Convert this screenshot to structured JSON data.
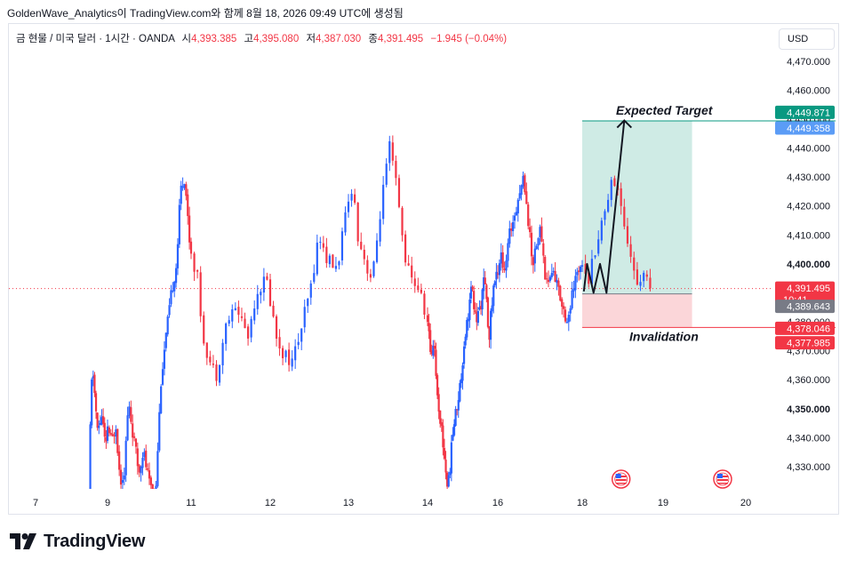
{
  "caption": "GoldenWave_Analytics이 TradingView.com와 함께 8월 18, 2026 09:49 UTC에 생성됨",
  "legend": {
    "symbol": "금 현물 / 미국 달러 · 1시간 · OANDA",
    "open_label": "시",
    "open": "4,393.385",
    "high_label": "고",
    "high": "4,395.080",
    "low_label": "저",
    "low": "4,387.030",
    "close_label": "종",
    "close": "4,391.495",
    "change": "−1.945 (−0.04%)"
  },
  "currency": "USD",
  "logo_text": "TradingView",
  "colors": {
    "up": "#2962ff",
    "down": "#f23645",
    "target_zone": "#cfebe5",
    "stop_zone": "#fbd6d9"
  },
  "chart_data": {
    "type": "candlestick",
    "y_axis": {
      "min": 4322,
      "max": 4478,
      "ticks": [
        4330,
        4340,
        4350,
        4360,
        4370,
        4380,
        4390,
        4400,
        4410,
        4420,
        4430,
        4440,
        4450,
        4460,
        4470
      ],
      "bold_ticks": [
        4350,
        4400
      ]
    },
    "x_axis": {
      "labels": [
        {
          "label": "7",
          "at": 7.0
        },
        {
          "label": "9",
          "at": 9.0
        },
        {
          "label": "11",
          "at": 11.0
        },
        {
          "label": "12",
          "at": 12.0
        },
        {
          "label": "13",
          "at": 13.0
        },
        {
          "label": "14",
          "at": 14.0
        },
        {
          "label": "16",
          "at": 16.0
        },
        {
          "label": "18",
          "at": 18.0
        },
        {
          "label": "19",
          "at": 19.0
        },
        {
          "label": "20",
          "at": 20.0
        }
      ]
    },
    "price_path": [
      [
        8.48,
        4322
      ],
      [
        8.55,
        4358
      ],
      [
        8.6,
        4362
      ],
      [
        8.72,
        4342
      ],
      [
        8.85,
        4348
      ],
      [
        8.95,
        4335
      ],
      [
        9.0,
        4344
      ],
      [
        9.1,
        4338
      ],
      [
        9.2,
        4345
      ],
      [
        9.3,
        4325
      ],
      [
        9.4,
        4329
      ],
      [
        9.5,
        4352
      ],
      [
        9.62,
        4340
      ],
      [
        9.75,
        4328
      ],
      [
        9.85,
        4336
      ],
      [
        10.0,
        4324
      ],
      [
        10.15,
        4322
      ],
      [
        10.28,
        4360
      ],
      [
        10.4,
        4375
      ],
      [
        10.55,
        4392
      ],
      [
        10.65,
        4400
      ],
      [
        10.75,
        4426
      ],
      [
        10.85,
        4430
      ],
      [
        10.95,
        4410
      ],
      [
        11.08,
        4395
      ],
      [
        11.15,
        4375
      ],
      [
        11.25,
        4365
      ],
      [
        11.32,
        4362
      ],
      [
        11.45,
        4380
      ],
      [
        11.58,
        4385
      ],
      [
        11.72,
        4375
      ],
      [
        11.82,
        4390
      ],
      [
        11.95,
        4395
      ],
      [
        12.08,
        4375
      ],
      [
        12.15,
        4370
      ],
      [
        12.28,
        4366
      ],
      [
        12.4,
        4378
      ],
      [
        12.52,
        4392
      ],
      [
        12.62,
        4410
      ],
      [
        12.72,
        4402
      ],
      [
        12.85,
        4398
      ],
      [
        12.95,
        4414
      ],
      [
        13.05,
        4428
      ],
      [
        13.12,
        4410
      ],
      [
        13.22,
        4400
      ],
      [
        13.3,
        4394
      ],
      [
        13.42,
        4422
      ],
      [
        13.52,
        4440
      ],
      [
        13.6,
        4428
      ],
      [
        13.7,
        4405
      ],
      [
        13.78,
        4395
      ],
      [
        13.88,
        4392
      ],
      [
        13.98,
        4382
      ],
      [
        14.1,
        4368
      ],
      [
        14.18,
        4375
      ],
      [
        14.28,
        4354
      ],
      [
        14.38,
        4345
      ],
      [
        14.48,
        4333
      ],
      [
        14.58,
        4322
      ],
      [
        14.72,
        4342
      ],
      [
        14.85,
        4352
      ],
      [
        14.95,
        4360
      ],
      [
        15.05,
        4374
      ],
      [
        15.15,
        4382
      ],
      [
        15.25,
        4392
      ],
      [
        15.38,
        4380
      ],
      [
        15.5,
        4385
      ],
      [
        15.62,
        4395
      ],
      [
        15.75,
        4375
      ],
      [
        15.88,
        4392
      ],
      [
        16.0,
        4398
      ],
      [
        16.08,
        4405
      ],
      [
        16.15,
        4395
      ],
      [
        16.28,
        4410
      ],
      [
        16.4,
        4418
      ],
      [
        16.52,
        4425
      ],
      [
        16.62,
        4430
      ],
      [
        16.72,
        4415
      ],
      [
        16.82,
        4400
      ],
      [
        16.92,
        4408
      ],
      [
        17.02,
        4412
      ],
      [
        17.12,
        4396
      ],
      [
        17.2,
        4394
      ],
      [
        17.3,
        4398
      ],
      [
        17.42,
        4392
      ],
      [
        17.55,
        4385
      ],
      [
        17.65,
        4380
      ],
      [
        17.78,
        4390
      ],
      [
        17.9,
        4398
      ],
      [
        18.0,
        4402
      ],
      [
        18.08,
        4395
      ],
      [
        18.18,
        4408
      ],
      [
        18.28,
        4418
      ],
      [
        18.36,
        4430
      ],
      [
        18.46,
        4424
      ],
      [
        18.55,
        4410
      ],
      [
        18.62,
        4400
      ],
      [
        18.68,
        4392
      ],
      [
        18.76,
        4398
      ],
      [
        18.84,
        4391.5
      ]
    ],
    "position": {
      "entry": 4389.643,
      "target": 4449.358,
      "stop": 4378.046,
      "start_at": 18.0,
      "end_at": 19.35
    },
    "projection": [
      {
        "at": 18.02,
        "y": 4390.5
      },
      {
        "at": 18.06,
        "y": 4400
      },
      {
        "at": 18.14,
        "y": 4390
      },
      {
        "at": 18.22,
        "y": 4400
      },
      {
        "at": 18.3,
        "y": 4390
      },
      {
        "at": 18.52,
        "y": 4449.5
      }
    ],
    "annotations": {
      "target_label": "Expected Target",
      "stop_label": "Invalidation"
    },
    "last_price_line": 4391.495,
    "price_labels": [
      {
        "value": 4449.871,
        "text": "4,449.871",
        "color": "#089981",
        "offset": -8
      },
      {
        "value": 4449.358,
        "text": "4,449.358",
        "color": "#5b9cf6",
        "offset": 8
      },
      {
        "value": 4391.495,
        "text": "4,391.495",
        "color": "#f23645",
        "offset": 0,
        "sub": "10:41"
      },
      {
        "value": 4389.643,
        "text": "4,389.643",
        "color": "#787b86",
        "offset": 14
      },
      {
        "value": 4378.046,
        "text": "4,378.046",
        "color": "#f23645",
        "offset": 1
      },
      {
        "value": 4377.985,
        "text": "4,377.985",
        "color": "#f23645",
        "offset": 17
      }
    ],
    "event_icons": [
      {
        "at": 18.48,
        "name": "us-economic-event"
      },
      {
        "at": 19.72,
        "name": "us-economic-event"
      }
    ]
  }
}
